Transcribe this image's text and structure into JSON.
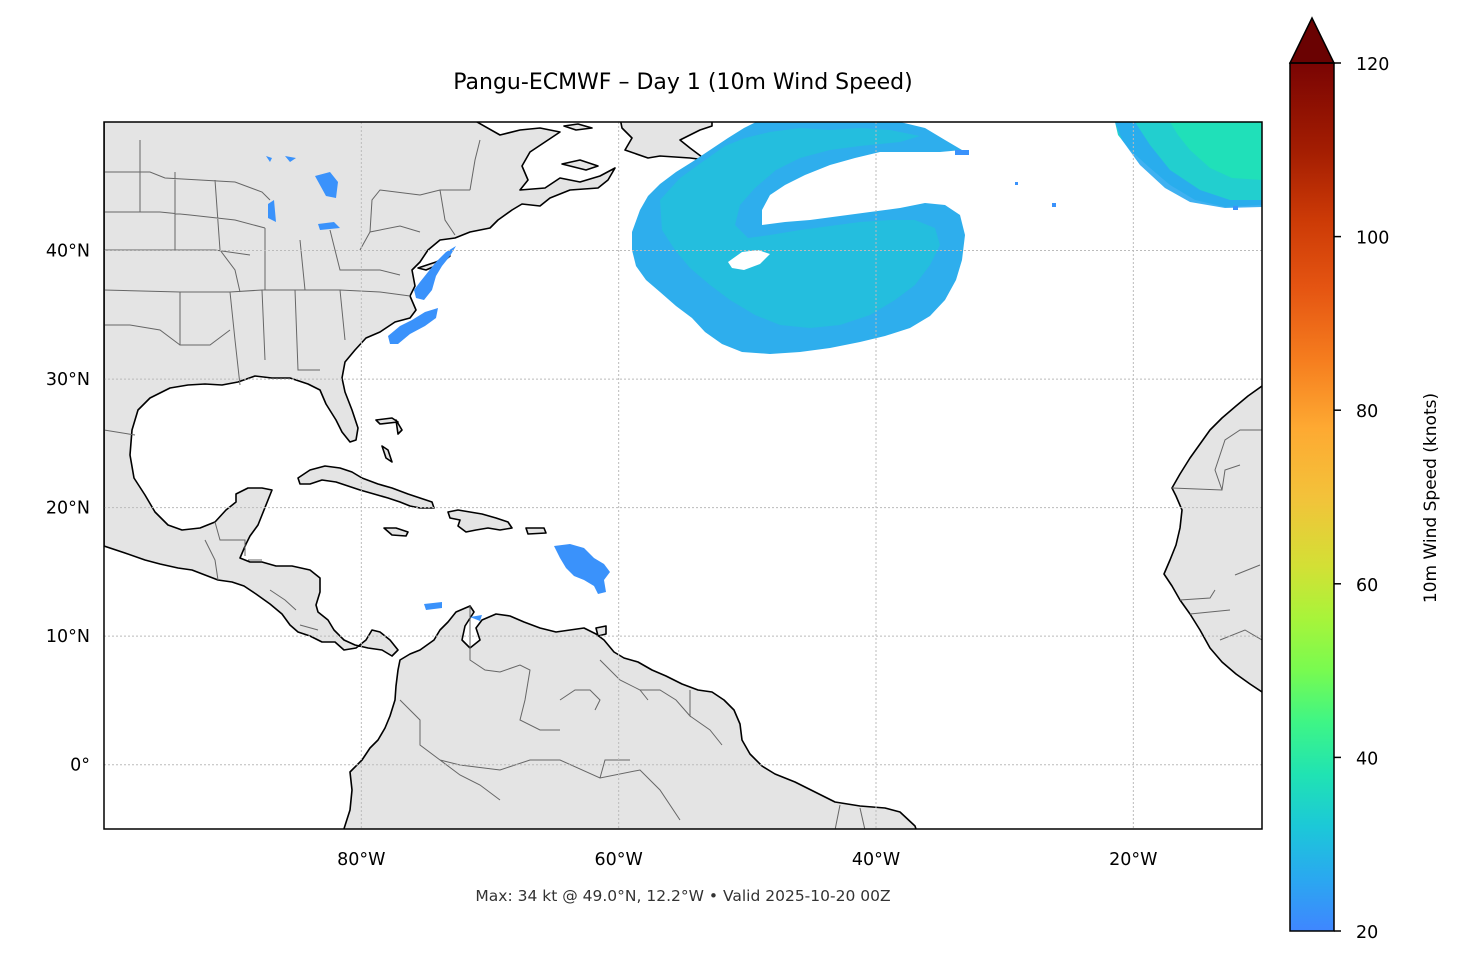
{
  "title": "Pangu-ECMWF – Day 1 (10m Wind Speed)",
  "footer": "Max: 34 kt @ 49.0°N, 12.2°W • Valid 2025-10-20 00Z",
  "map": {
    "lon_range": [
      -100,
      -10
    ],
    "lat_range": [
      -5,
      50
    ],
    "lon_ticks": [
      {
        "value": -80,
        "label": "80°W"
      },
      {
        "value": -60,
        "label": "60°W"
      },
      {
        "value": -40,
        "label": "40°W"
      },
      {
        "value": -20,
        "label": "20°W"
      }
    ],
    "lat_ticks": [
      {
        "value": 40,
        "label": "40°N"
      },
      {
        "value": 30,
        "label": "30°N"
      },
      {
        "value": 20,
        "label": "20°N"
      },
      {
        "value": 10,
        "label": "10°N"
      },
      {
        "value": 0,
        "label": "0°"
      }
    ],
    "gridlines": true,
    "land_color": "#e4e4e4",
    "ocean_color": "#ffffff",
    "coastline_color": "#000000",
    "border_color": "#666666"
  },
  "colorbar": {
    "label": "10m Wind Speed (knots)",
    "range": [
      20,
      120
    ],
    "extend": "max",
    "colormap": "turbo",
    "ticks": [
      {
        "value": 20,
        "label": "20"
      },
      {
        "value": 40,
        "label": "40"
      },
      {
        "value": 60,
        "label": "60"
      },
      {
        "value": 80,
        "label": "80"
      },
      {
        "value": 100,
        "label": "100"
      },
      {
        "value": 120,
        "label": "120"
      }
    ],
    "stops": [
      {
        "value": 20,
        "color": "#3f86ff"
      },
      {
        "value": 26,
        "color": "#2aa8f0"
      },
      {
        "value": 32,
        "color": "#1cc8d8"
      },
      {
        "value": 38,
        "color": "#20e3b3"
      },
      {
        "value": 44,
        "color": "#3ef586"
      },
      {
        "value": 50,
        "color": "#78fb50"
      },
      {
        "value": 56,
        "color": "#a8f43a"
      },
      {
        "value": 62,
        "color": "#d3e035"
      },
      {
        "value": 70,
        "color": "#f3c23a"
      },
      {
        "value": 78,
        "color": "#fea932"
      },
      {
        "value": 86,
        "color": "#f57c1e"
      },
      {
        "value": 94,
        "color": "#e55512"
      },
      {
        "value": 102,
        "color": "#cc3a06"
      },
      {
        "value": 110,
        "color": "#a31d02"
      },
      {
        "value": 120,
        "color": "#7a0403"
      }
    ],
    "over_color": "#6a0202"
  },
  "wind_regions": [
    {
      "name": "north-atlantic-low",
      "speed_kt": 28
    },
    {
      "name": "northeast-atlantic-jet",
      "speed_kt": 34
    },
    {
      "name": "us-east-coast",
      "speed_kt": 24
    },
    {
      "name": "lesser-antilles",
      "speed_kt": 23
    },
    {
      "name": "great-lakes",
      "speed_kt": 22
    },
    {
      "name": "caribbean-coast",
      "speed_kt": 21
    }
  ]
}
